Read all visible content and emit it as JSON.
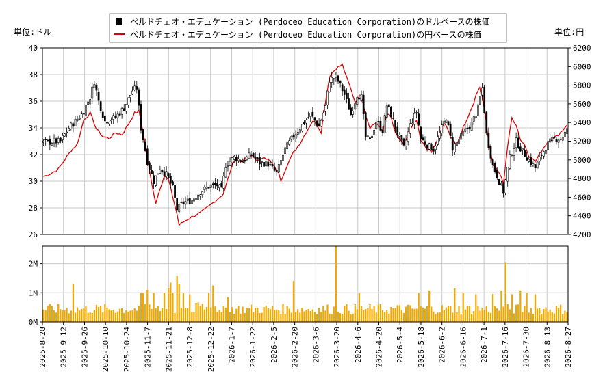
{
  "legend": {
    "items": [
      {
        "label": "ペルドチェオ・エデュケーション (Perdoceo Education Corporation)のドルベースの株価",
        "color": "#000000",
        "marker": "square"
      },
      {
        "label": "ペルドチェオ・エデュケーション (Perdoceo Education Corporation)の円ベースの株価",
        "color": "#dd0000",
        "marker": "line"
      }
    ]
  },
  "units": {
    "left": "単位:ドル",
    "right": "単位:円"
  },
  "colors": {
    "candle": "#000000",
    "yen_line": "#dd0000",
    "volume_bar": "#f0a800",
    "grid": "#c8c8c8"
  },
  "chart_data": [
    {
      "type": "candlestick",
      "title": "",
      "x_tick_labels": [
        "2025-8-28",
        "2025-9-12",
        "2025-9-26",
        "2025-10-10",
        "2025-10-24",
        "2025-11-7",
        "2025-11-21",
        "2025-12-8",
        "2025-12-22",
        "2026-1-7",
        "2026-1-22",
        "2026-2-5",
        "2026-2-20",
        "2026-3-6",
        "2026-3-20",
        "2026-4-6",
        "2026-4-20",
        "2026-5-4",
        "2026-5-18",
        "2026-6-2",
        "2026-6-16",
        "2026-7-1",
        "2026-7-16",
        "2026-7-30",
        "2026-8-13",
        "2026-8-27"
      ],
      "y_left": {
        "label": "単位:ドル",
        "ylim": [
          26,
          40
        ],
        "ticks": [
          26,
          28,
          30,
          32,
          34,
          36,
          38,
          40
        ]
      },
      "y_right": {
        "label": "単位:円",
        "ylim": [
          4200,
          6200
        ],
        "ticks": [
          4200,
          4400,
          4600,
          4800,
          5000,
          5200,
          5400,
          5600,
          5800,
          6000,
          6200
        ]
      },
      "series": [
        {
          "name": "ペルドチェオ・エデュケーション (Perdoceo Education Corporation)のドルベースの株価",
          "style": "candle",
          "close_keypoints": [
            [
              0,
              32.9
            ],
            [
              8,
              33.0
            ],
            [
              12,
              34.0
            ],
            [
              18,
              35.0
            ],
            [
              22,
              36.3
            ],
            [
              24,
              37.5
            ],
            [
              26,
              36.0
            ],
            [
              29,
              34.5
            ],
            [
              34,
              34.8
            ],
            [
              38,
              35.5
            ],
            [
              42,
              36.8
            ],
            [
              44,
              37.0
            ],
            [
              46,
              34.0
            ],
            [
              49,
              31.5
            ],
            [
              52,
              30.0
            ],
            [
              55,
              31.0
            ],
            [
              58,
              30.5
            ],
            [
              61,
              29.5
            ],
            [
              63,
              27.9
            ],
            [
              66,
              28.4
            ],
            [
              70,
              28.6
            ],
            [
              74,
              29.2
            ],
            [
              78,
              29.6
            ],
            [
              82,
              29.7
            ],
            [
              84,
              29.3
            ],
            [
              86,
              31.2
            ],
            [
              90,
              31.8
            ],
            [
              94,
              31.5
            ],
            [
              98,
              32.0
            ],
            [
              102,
              31.4
            ],
            [
              106,
              31.3
            ],
            [
              110,
              30.6
            ],
            [
              114,
              32.4
            ],
            [
              118,
              33.4
            ],
            [
              122,
              34.2
            ],
            [
              126,
              35.0
            ],
            [
              130,
              34.1
            ],
            [
              133,
              35.6
            ],
            [
              135,
              37.6
            ],
            [
              138,
              37.8
            ],
            [
              140,
              37.2
            ],
            [
              142,
              36.5
            ],
            [
              145,
              35.0
            ],
            [
              148,
              36.5
            ],
            [
              150,
              36.3
            ],
            [
              152,
              33.3
            ],
            [
              154,
              33.0
            ],
            [
              157,
              34.5
            ],
            [
              160,
              33.8
            ],
            [
              162,
              35.7
            ],
            [
              164,
              35.0
            ],
            [
              167,
              33.6
            ],
            [
              170,
              32.5
            ],
            [
              173,
              34.2
            ],
            [
              176,
              35.2
            ],
            [
              178,
              33.2
            ],
            [
              181,
              32.7
            ],
            [
              184,
              32.4
            ],
            [
              187,
              33.6
            ],
            [
              190,
              34.8
            ],
            [
              193,
              32.5
            ],
            [
              196,
              33.1
            ],
            [
              199,
              33.8
            ],
            [
              202,
              34.3
            ],
            [
              205,
              35.5
            ],
            [
              207,
              37.0
            ],
            [
              209,
              33.5
            ],
            [
              212,
              31.2
            ],
            [
              215,
              30.0
            ],
            [
              217,
              29.2
            ],
            [
              220,
              31.8
            ],
            [
              223,
              33.0
            ],
            [
              226,
              32.2
            ],
            [
              229,
              31.6
            ],
            [
              232,
              31.0
            ],
            [
              235,
              32.0
            ],
            [
              238,
              32.8
            ],
            [
              241,
              33.2
            ],
            [
              244,
              33.2
            ],
            [
              247,
              33.8
            ]
          ]
        },
        {
          "name": "ペルドチェオ・エデュケーション (Perdoceo Education Corporation)の円ベースの株価",
          "style": "line",
          "keypoints": [
            [
              0,
              4820
            ],
            [
              4,
              4860
            ],
            [
              7,
              4900
            ],
            [
              10,
              5000
            ],
            [
              13,
              5100
            ],
            [
              16,
              5170
            ],
            [
              19,
              5430
            ],
            [
              22,
              5500
            ],
            [
              25,
              5330
            ],
            [
              28,
              5250
            ],
            [
              31,
              5230
            ],
            [
              34,
              5290
            ],
            [
              37,
              5270
            ],
            [
              40,
              5380
            ],
            [
              43,
              5500
            ],
            [
              45,
              5520
            ],
            [
              47,
              5300
            ],
            [
              49,
              5020
            ],
            [
              51,
              4750
            ],
            [
              53,
              4540
            ],
            [
              55,
              4700
            ],
            [
              57,
              4830
            ],
            [
              59,
              4780
            ],
            [
              61,
              4600
            ],
            [
              63,
              4420
            ],
            [
              64,
              4300
            ],
            [
              67,
              4350
            ],
            [
              70,
              4390
            ],
            [
              74,
              4430
            ],
            [
              78,
              4500
            ],
            [
              82,
              4580
            ],
            [
              85,
              4640
            ],
            [
              88,
              4870
            ],
            [
              90,
              5000
            ],
            [
              93,
              4980
            ],
            [
              96,
              5020
            ],
            [
              99,
              5050
            ],
            [
              101,
              4980
            ],
            [
              104,
              5040
            ],
            [
              107,
              4980
            ],
            [
              109,
              4920
            ],
            [
              111,
              4850
            ],
            [
              112,
              4780
            ],
            [
              115,
              4950
            ],
            [
              118,
              5080
            ],
            [
              121,
              5180
            ],
            [
              124,
              5300
            ],
            [
              127,
              5420
            ],
            [
              129,
              5380
            ],
            [
              131,
              5300
            ],
            [
              133,
              5620
            ],
            [
              135,
              5900
            ],
            [
              138,
              5980
            ],
            [
              141,
              6020
            ],
            [
              143,
              5880
            ],
            [
              145,
              5760
            ],
            [
              147,
              5620
            ],
            [
              150,
              5700
            ],
            [
              152,
              5480
            ],
            [
              154,
              5350
            ],
            [
              157,
              5400
            ],
            [
              160,
              5300
            ],
            [
              162,
              5500
            ],
            [
              164,
              5450
            ],
            [
              166,
              5280
            ],
            [
              168,
              5220
            ],
            [
              170,
              5150
            ],
            [
              173,
              5320
            ],
            [
              176,
              5420
            ],
            [
              178,
              5200
            ],
            [
              181,
              5120
            ],
            [
              183,
              5080
            ],
            [
              186,
              5220
            ],
            [
              189,
              5400
            ],
            [
              192,
              5260
            ],
            [
              195,
              5150
            ],
            [
              198,
              5350
            ],
            [
              201,
              5500
            ],
            [
              204,
              5680
            ],
            [
              206,
              5800
            ],
            [
              208,
              5550
            ],
            [
              210,
              5200
            ],
            [
              212,
              4950
            ],
            [
              215,
              4860
            ],
            [
              217,
              4750
            ],
            [
              219,
              5150
            ],
            [
              221,
              5450
            ],
            [
              223,
              5380
            ],
            [
              225,
              5220
            ],
            [
              227,
              5160
            ],
            [
              229,
              5050
            ],
            [
              232,
              4980
            ],
            [
              235,
              5100
            ],
            [
              238,
              5200
            ],
            [
              242,
              5250
            ],
            [
              245,
              5320
            ],
            [
              247,
              5380
            ]
          ]
        }
      ]
    },
    {
      "type": "bar",
      "title": "",
      "ylabel": "",
      "ylim": [
        0,
        2600000
      ],
      "y_tick_labels": [
        "0M",
        "1M",
        "2M"
      ],
      "y_tick_values": [
        0,
        1000000,
        2000000
      ],
      "series": [
        {
          "name": "",
          "baseline": 480000,
          "spikes": [
            [
              14,
              1300000
            ],
            [
              45,
              560000
            ],
            [
              46,
              1000000
            ],
            [
              47,
              1000000
            ],
            [
              49,
              1100000
            ],
            [
              52,
              1000000
            ],
            [
              57,
              1000000
            ],
            [
              59,
              1150000
            ],
            [
              60,
              1350000
            ],
            [
              61,
              1000000
            ],
            [
              63,
              1580000
            ],
            [
              64,
              1300000
            ],
            [
              66,
              1000000
            ],
            [
              69,
              950000
            ],
            [
              78,
              1000000
            ],
            [
              80,
              1250000
            ],
            [
              87,
              850000
            ],
            [
              118,
              1400000
            ],
            [
              138,
              2600000
            ],
            [
              149,
              1000000
            ],
            [
              177,
              1000000
            ],
            [
              182,
              1080000
            ],
            [
              194,
              1150000
            ],
            [
              198,
              1000000
            ],
            [
              204,
              950000
            ],
            [
              212,
              960000
            ],
            [
              216,
              1080000
            ],
            [
              218,
              2050000
            ],
            [
              221,
              950000
            ],
            [
              225,
              1080000
            ],
            [
              228,
              1000000
            ],
            [
              232,
              950000
            ]
          ]
        }
      ]
    }
  ]
}
